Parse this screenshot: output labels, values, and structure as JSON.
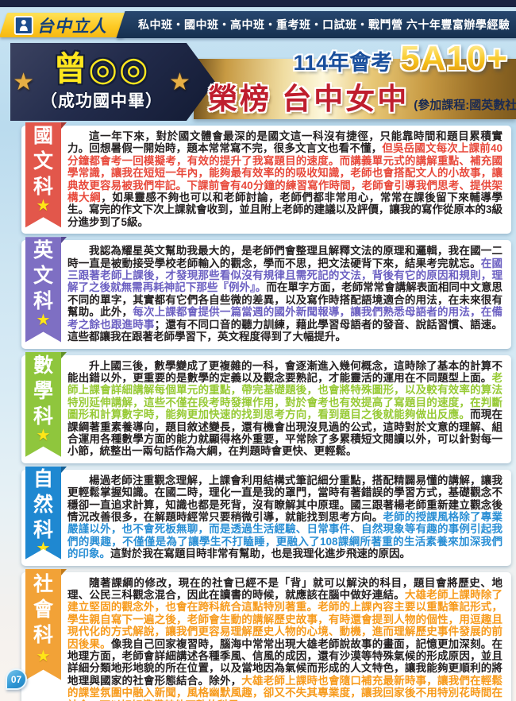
{
  "page": {
    "number": "07"
  },
  "icons": {
    "star": "★",
    "person": "person-icon"
  },
  "topbar": {
    "logo_text": "台中立人",
    "banner_text": "私中班・國中班・高中班・重考班・口試班・戰鬥營 六十年豐富辦學經驗"
  },
  "header": {
    "student_name": "曾◎◎",
    "student_school": "（成功國中畢）",
    "exam_year_label": "114年會考",
    "score": "5A10+",
    "result_prefix": "榮榜",
    "result_school": "台中女中",
    "courses_note": "(參加課程:國英數社自)"
  },
  "colors": {
    "chinese_ribbon": "#e2574b",
    "chinese_accent": "#e8493b",
    "english_ribbon": "#7e6fc3",
    "english_accent": "#6c60c2",
    "math_ribbon": "#8fc63d",
    "math_accent": "#97ca35",
    "science_ribbon": "#1f88d1",
    "science_accent": "#2a8fd5",
    "social_ribbon": "#f2a237",
    "social_accent": "#f79b1d"
  },
  "sections": [
    {
      "id": "chinese",
      "label": "國文科",
      "ribbon_color": "#e2574b",
      "ribbon_dark": "#a83a32",
      "accent_color": "#e8493b",
      "segments": [
        {
          "accent": false,
          "text": "這一年下來，對於國文體會最深的是國文這一科沒有捷徑，只能靠時間和題目累積實力。回想暑假一開始時，題本常常寫不完，很多文言文也看不懂，"
        },
        {
          "accent": true,
          "text": "但吳岳國文每次上課前40分鐘都會考一回模擬考，有效的提升了我寫題目的速度。而講義單元式的講解重點、補充國學常識，讓我在短短一年內，能夠最有效率的的吸收知識，老師也會搭配文人的小故事，讓典故更容易被我們牢記。下課前會有40分鐘的練習寫作時間，老師會引導我們思考、提供架構大綱"
        },
        {
          "accent": false,
          "text": "，如果靈感不夠也可以和老師討論，老師們都非常用心，常常在課後留下來輔導學生。寫完的作文下次上課就會收到，並且附上老師的建議以及評價，讓我的寫作從原本的3級分進步到了5級。"
        }
      ]
    },
    {
      "id": "english",
      "label": "英文科",
      "ribbon_color": "#7e6fc3",
      "ribbon_dark": "#544790",
      "accent_color": "#6c60c2",
      "segments": [
        {
          "accent": false,
          "text": "我認為耀星英文幫助我最大的，是老師們會整理且解釋文法的原理和邏輯，我在國一二時一直是被動接受學校老師輸入的觀念，學而不思，把文法硬背下來，結果考完就忘。"
        },
        {
          "accent": true,
          "text": "在國三跟著老師上課後，才發現那些看似沒有規律且需死記的文法，背後有它的原因和規則，理解了之後就無需再耗神記下那些『例外』。"
        },
        {
          "accent": false,
          "text": "而在單字方面，老師常常會講解表面相同中文意思不同的單字，其實都有它們各自些微的差異，以及寫作時搭配語境適合的用法，在未來很有幫助。此外，"
        },
        {
          "accent": true,
          "text": "每次上課都會提供一篇當週的國外新聞報導，讓我們熟悉母語者的用法，在備考之餘也跟進時事"
        },
        {
          "accent": false,
          "text": "；還有不同口音的聽力訓練，藉此學習母語者的發音、說話習慣、語速。這些都讓我在跟著老師學習下，英文程度得到了大幅提升。"
        }
      ]
    },
    {
      "id": "math",
      "label": "數學科",
      "ribbon_color": "#8fc63d",
      "ribbon_dark": "#63902a",
      "accent_color": "#97ca35",
      "segments": [
        {
          "accent": false,
          "text": "升上國三後，數學變成了更複雜的一科，會逐漸進入幾何概念，這時除了基本的計算不能出錯以外，更重要的是數學的定義以及觀念要熟記，才能靈活的運用在不同題型上面。"
        },
        {
          "accent": true,
          "text": "老師上課會詳細講解每個單元的重點，帶完基礎題後，也會將特殊圖形，以及較有效率的算法特別延伸講解，這些不僅在段考時發揮作用，對於會考也有效提高了寫題目的速度，在判斷圖形和計算數字時，能夠更加快速的找到思考方向，看到題目之後就能夠做出反應。"
        },
        {
          "accent": false,
          "text": "而現在課綱著重素養導向，題目敘述變長，還有機會出現沒見過的公式，這時對於文意的理解、組合運用各種數學方面的能力就顯得格外重要，平常除了多累積短文閱讀以外，可以針對每一小節，統整出一兩句話作為大綱，在判題時會更快、更輕鬆。"
        }
      ]
    },
    {
      "id": "science",
      "label": "自然科",
      "ribbon_color": "#1f88d1",
      "ribbon_dark": "#135f96",
      "accent_color": "#2a8fd5",
      "segments": [
        {
          "accent": false,
          "text": "楊過老師注重觀念理解，上課會利用結構式筆記細分重點，搭配精闢易懂的講解，讓我更輕鬆掌握知識。在國二時，理化一直是我的罩門，當時有著錯誤的學習方式，基礎觀念不穩卻一直追求計算，知識也都是死背，沒有瞭解其中原理。國三跟著楊老師重新建立觀念後情況改善很多，在解題時經常只要稍微引導，就能找到思考方向。"
        },
        {
          "accent": true,
          "text": "老師的授課風格除了專業嚴謹以外，也不會死板無聊，而是透過生活經驗、日常事件、自然現象等有趣的事例引起我們的興趣，不僅僅是為了讓學生不打瞌睡，更融入了108課綱所著重的生活素養來加深我們的印象。"
        },
        {
          "accent": false,
          "text": "這對於我在寫題目時非常有幫助，也是我理化進步飛速的原因。"
        }
      ]
    },
    {
      "id": "social",
      "label": "社會科",
      "ribbon_color": "#f2a237",
      "ribbon_dark": "#c07a1a",
      "accent_color": "#f79b1d",
      "segments": [
        {
          "accent": false,
          "text": "隨著課綱的修改，現在的社會已經不是「背」就可以解決的科目，題目會將歷史、地理、公民三科觀念混合，因此在讀書的時候，就應該在腦中做好連結。"
        },
        {
          "accent": true,
          "text": "大雄老師上課時除了建立堅固的觀念外，也會在跨科統合這點特別著重。老師的上課內容主要以重點筆記形式，學生親自寫下一遍之後，老師會生動的講解歷史故事，有時還會提到人物的個性，用逗趣且現代化的方式解說，讓我們更容易理解歷史人物的心境、動機，進而理解歷史事件發展的前因後果。"
        },
        {
          "accent": false,
          "text": "像我自己回家複習時，腦海中常常出現大雄老師說故事的畫面，記憶更加深刻。在地理方面，老師會詳細講述各種季風、信風的成因，還有沙漠等特殊氣候的形成原因，並且詳細分類地形地貌的所在位置，以及當地因為氣候而形成的人文特色，讓我能夠更順利的將地理與國家的社會形態結合。除外，"
        },
        {
          "accent": true,
          "text": "大雄老師上課時也會隨口補充最新時事，讓我們在輕鬆的課堂氛圍中融入新聞，風格幽默風趣，卻又不失其專業度，讓我回家後不用特別花時間在社會，可以好好準備其他不熟的科目。"
        }
      ]
    }
  ]
}
